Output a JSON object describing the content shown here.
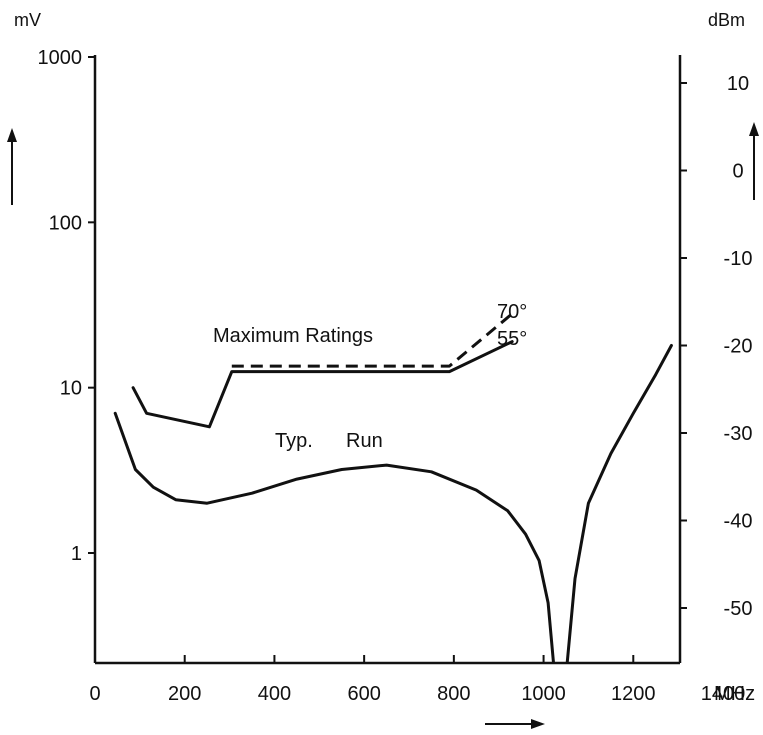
{
  "chart_data": {
    "type": "line",
    "title": "",
    "xlabel": "MHz",
    "ylabel_left": "mV",
    "ylabel_right": "dBm",
    "y_scale": "log",
    "xlim": [
      0,
      1400
    ],
    "ylim": [
      0.22,
      1000
    ],
    "x_ticks": [
      "0",
      "200",
      "400",
      "600",
      "800",
      "1000",
      "1200",
      "1400"
    ],
    "y_ticks_left": [
      "1",
      "10",
      "100",
      "1000"
    ],
    "y_ticks_right": [
      "10",
      "0",
      "-10",
      "-20",
      "-30",
      "-40",
      "-50"
    ],
    "grid": false,
    "series": [
      {
        "name": "Typ. Run",
        "style": "solid",
        "x": [
          45,
          90,
          130,
          180,
          250,
          350,
          450,
          550,
          650,
          750,
          850,
          920,
          960,
          990,
          1010,
          1022
        ],
        "y": [
          7,
          3.2,
          2.5,
          2.1,
          2.0,
          2.3,
          2.8,
          3.2,
          3.4,
          3.1,
          2.4,
          1.8,
          1.3,
          0.9,
          0.5,
          0.22
        ]
      },
      {
        "name": "",
        "style": "solid",
        "x": [
          1053,
          1070,
          1100,
          1150,
          1200,
          1250,
          1285
        ],
        "y": [
          0.22,
          0.7,
          2.0,
          4.0,
          7.0,
          12.0,
          18.0
        ]
      },
      {
        "name": "55°",
        "style": "solid",
        "x": [
          85,
          115,
          255,
          305,
          790,
          930
        ],
        "y": [
          10,
          7,
          5.8,
          12.5,
          12.5,
          19
        ]
      },
      {
        "name": "70°",
        "style": "dashed",
        "x": [
          305,
          790,
          930
        ],
        "y": [
          13.5,
          13.5,
          28
        ]
      }
    ],
    "annotations": [
      "Maximum Ratings",
      "Typ.",
      "Run",
      "70°",
      "55°"
    ]
  }
}
